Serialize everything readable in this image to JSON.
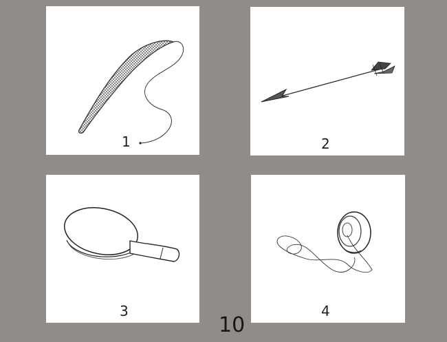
{
  "cards": [
    {
      "number": "1",
      "icon": "whip-icon"
    },
    {
      "number": "2",
      "icon": "arrow-icon"
    },
    {
      "number": "3",
      "icon": "ping-pong-paddle-icon"
    },
    {
      "number": "4",
      "icon": "yoyo-icon"
    }
  ],
  "page_number": "10",
  "colors": {
    "background": "#8f8c8a",
    "card": "#ffffff",
    "ink": "#1e1e1e"
  }
}
